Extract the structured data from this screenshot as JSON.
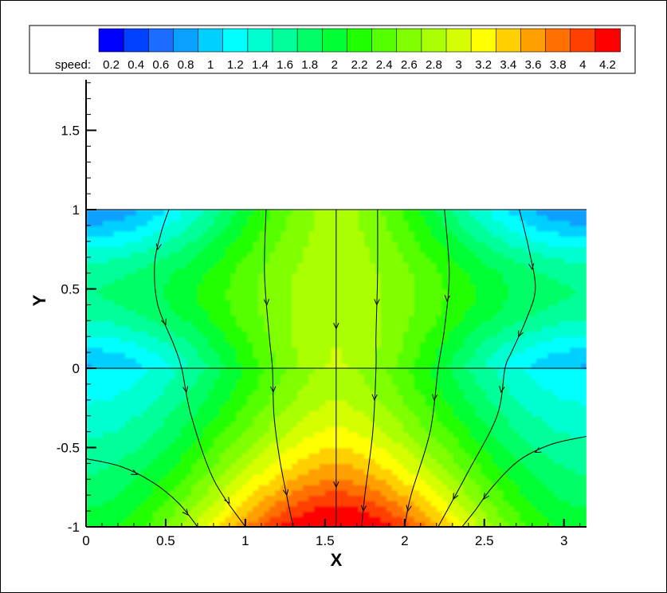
{
  "chart_data": {
    "type": "heatmap",
    "title": "",
    "xlabel": "X",
    "ylabel": "Y",
    "xlim": [
      0,
      3.14159
    ],
    "ylim": [
      -1,
      1.9
    ],
    "data_ylim": [
      -1,
      1
    ],
    "x_ticks": [
      0,
      0.5,
      1,
      1.5,
      2,
      2.5,
      3
    ],
    "x_tick_labels": [
      "0",
      "0.5",
      "1",
      "1.5",
      "2",
      "2.5",
      "3"
    ],
    "y_ticks": [
      -1,
      -0.5,
      0,
      0.5,
      1,
      1.5
    ],
    "y_tick_labels": [
      "-1",
      "-0.5",
      "0",
      "0.5",
      "1",
      "1.5"
    ],
    "grid": false,
    "horizontal_line_y": 0,
    "legend": {
      "label": "speed:",
      "placement": "top",
      "levels": [
        0.1,
        0.3,
        0.5,
        0.7,
        0.9,
        1.1,
        1.3,
        1.5,
        1.7,
        1.9,
        2.1,
        2.3,
        2.5,
        2.7,
        2.9,
        3.1,
        3.3,
        3.5,
        3.7,
        3.9,
        4.1
      ],
      "tick_labels": [
        "0.2",
        "0.4",
        "0.6",
        "0.8",
        "1",
        "1.2",
        "1.4",
        "1.6",
        "1.8",
        "2",
        "2.2",
        "2.4",
        "2.6",
        "2.8",
        "3",
        "3.2",
        "3.4",
        "3.6",
        "3.8",
        "4",
        "4.2"
      ],
      "colors": [
        "#0000ff",
        "#0040ff",
        "#1a6dff",
        "#0aa0ff",
        "#00d0ff",
        "#00ffff",
        "#00ffd0",
        "#00ff99",
        "#00ff66",
        "#00ff33",
        "#20ff00",
        "#55ff00",
        "#80ff00",
        "#aaff00",
        "#d5ff00",
        "#ffff00",
        "#ffd000",
        "#ffa000",
        "#ff7000",
        "#ff4000",
        "#ff0000"
      ]
    },
    "streamlines": [
      {
        "points": [
          [
            0.52,
            1.0
          ],
          [
            0.47,
            0.85
          ],
          [
            0.43,
            0.65
          ],
          [
            0.45,
            0.4
          ],
          [
            0.55,
            0.15
          ],
          [
            0.6,
            0.0
          ],
          [
            0.66,
            -0.3
          ],
          [
            0.8,
            -0.7
          ],
          [
            1.0,
            -1.0
          ]
        ]
      },
      {
        "points": [
          [
            1.13,
            1.0
          ],
          [
            1.12,
            0.6
          ],
          [
            1.15,
            0.2
          ],
          [
            1.17,
            0.0
          ],
          [
            1.18,
            -0.3
          ],
          [
            1.22,
            -0.6
          ],
          [
            1.3,
            -1.0
          ]
        ]
      },
      {
        "points": [
          [
            1.57,
            1.0
          ],
          [
            1.57,
            0.5
          ],
          [
            1.57,
            0.0
          ],
          [
            1.57,
            -0.5
          ],
          [
            1.57,
            -1.0
          ]
        ]
      },
      {
        "points": [
          [
            1.83,
            1.0
          ],
          [
            1.83,
            0.6
          ],
          [
            1.82,
            0.2
          ],
          [
            1.82,
            0.0
          ],
          [
            1.8,
            -0.4
          ],
          [
            1.75,
            -0.8
          ],
          [
            1.73,
            -1.0
          ]
        ]
      },
      {
        "points": [
          [
            2.25,
            1.0
          ],
          [
            2.28,
            0.6
          ],
          [
            2.25,
            0.25
          ],
          [
            2.21,
            0.0
          ],
          [
            2.16,
            -0.4
          ],
          [
            2.04,
            -0.8
          ],
          [
            2.0,
            -1.0
          ]
        ]
      },
      {
        "points": [
          [
            2.72,
            1.0
          ],
          [
            2.78,
            0.75
          ],
          [
            2.82,
            0.5
          ],
          [
            2.76,
            0.3
          ],
          [
            2.67,
            0.1
          ],
          [
            2.63,
            0.0
          ],
          [
            2.58,
            -0.3
          ],
          [
            2.4,
            -0.65
          ],
          [
            2.21,
            -1.0
          ]
        ]
      },
      {
        "points": [
          [
            3.14,
            -0.43
          ],
          [
            2.92,
            -0.48
          ],
          [
            2.72,
            -0.58
          ],
          [
            2.55,
            -0.75
          ],
          [
            2.44,
            -0.9
          ],
          [
            2.36,
            -1.0
          ]
        ]
      },
      {
        "points": [
          [
            0.0,
            -0.57
          ],
          [
            0.22,
            -0.62
          ],
          [
            0.42,
            -0.72
          ],
          [
            0.58,
            -0.85
          ],
          [
            0.7,
            -1.0
          ]
        ]
      }
    ]
  }
}
